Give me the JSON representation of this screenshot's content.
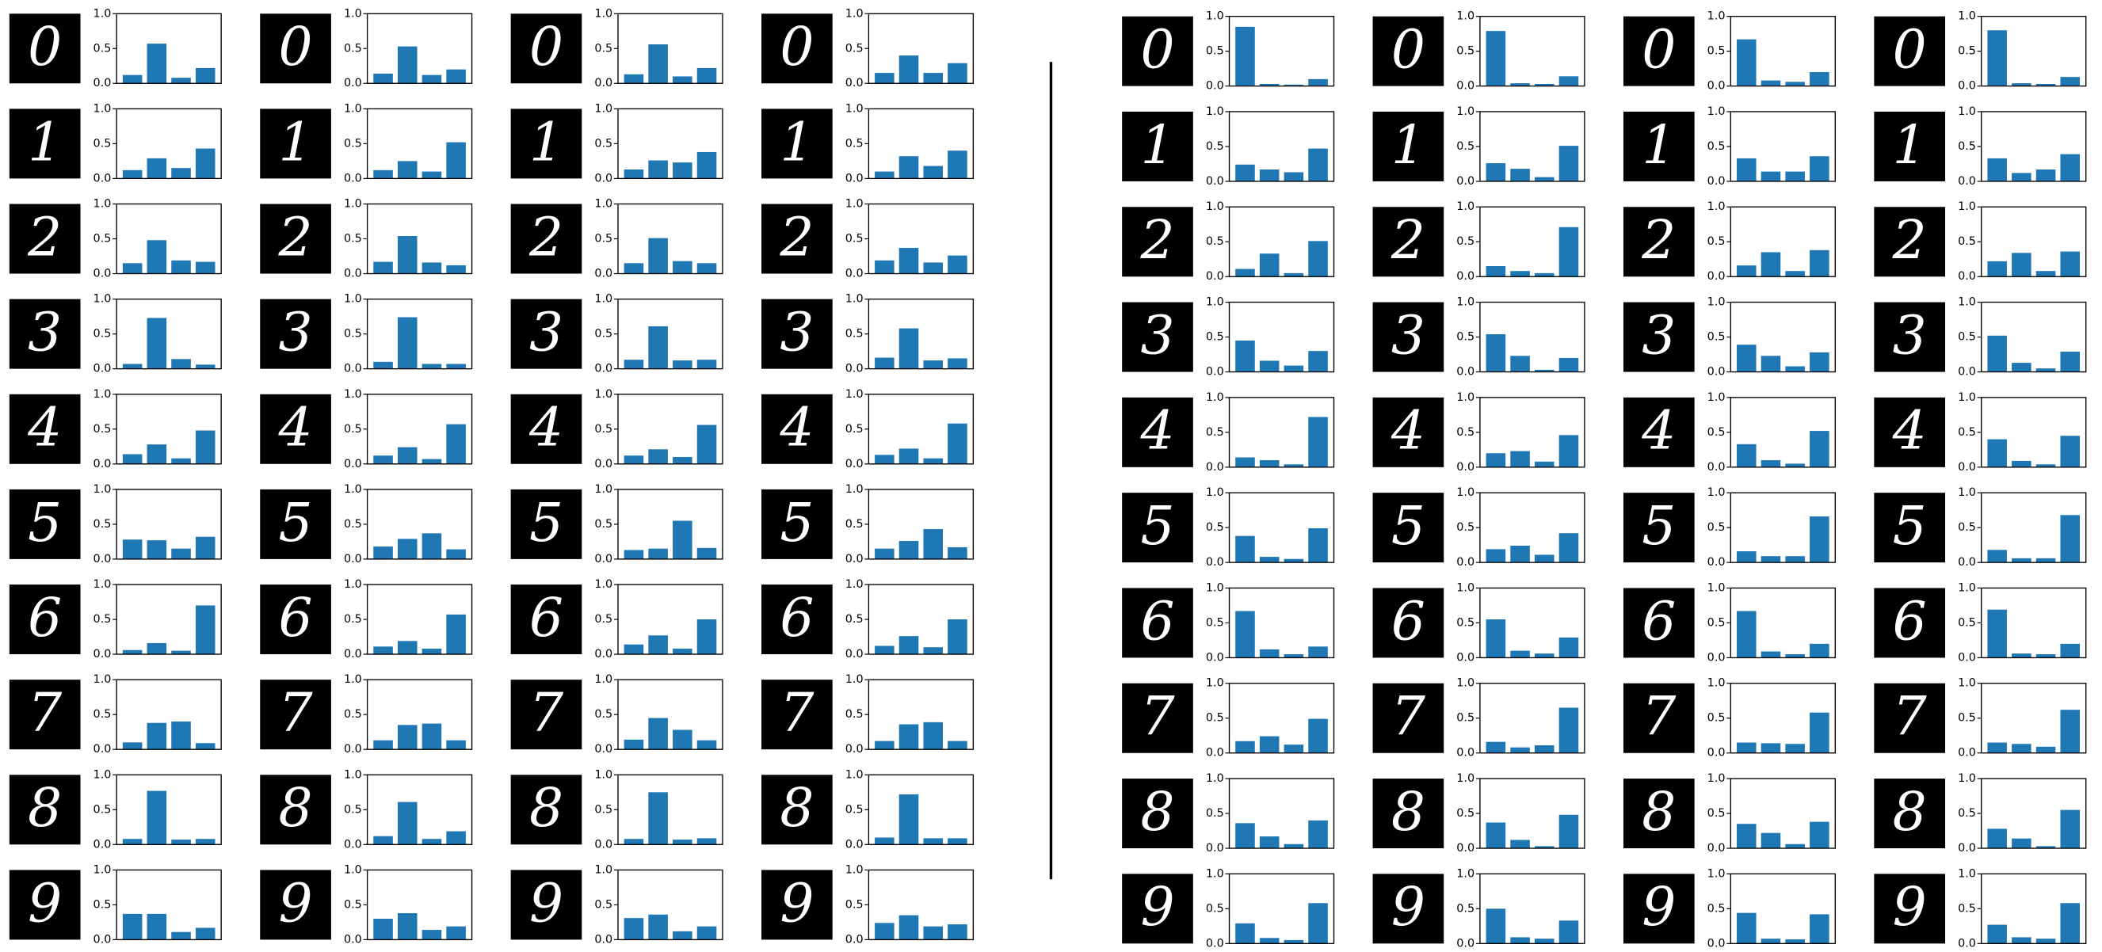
{
  "chart_data": {
    "type": "bar",
    "color": "#1f77b4",
    "ylim": [
      0,
      1
    ],
    "yticks": [
      {
        "value": 0,
        "label": "0.0"
      },
      {
        "value": 0.5,
        "label": "0.5"
      },
      {
        "value": 1,
        "label": "1.0"
      }
    ],
    "panels": [
      {
        "rows": [
          {
            "digit": "0",
            "charts": [
              [
                0.12,
                0.57,
                0.08,
                0.22
              ],
              [
                0.14,
                0.53,
                0.12,
                0.2
              ],
              [
                0.13,
                0.56,
                0.1,
                0.22
              ],
              [
                0.15,
                0.4,
                0.15,
                0.29
              ]
            ]
          },
          {
            "digit": "1",
            "charts": [
              [
                0.12,
                0.29,
                0.15,
                0.43
              ],
              [
                0.12,
                0.25,
                0.1,
                0.52
              ],
              [
                0.13,
                0.26,
                0.23,
                0.38
              ],
              [
                0.1,
                0.32,
                0.18,
                0.4
              ]
            ]
          },
          {
            "digit": "2",
            "charts": [
              [
                0.15,
                0.48,
                0.19,
                0.17
              ],
              [
                0.17,
                0.54,
                0.16,
                0.12
              ],
              [
                0.15,
                0.51,
                0.18,
                0.15
              ],
              [
                0.19,
                0.37,
                0.16,
                0.26
              ]
            ]
          },
          {
            "digit": "3",
            "charts": [
              [
                0.07,
                0.73,
                0.14,
                0.06
              ],
              [
                0.1,
                0.74,
                0.07,
                0.07
              ],
              [
                0.13,
                0.61,
                0.12,
                0.13
              ],
              [
                0.16,
                0.58,
                0.12,
                0.15
              ]
            ]
          },
          {
            "digit": "4",
            "charts": [
              [
                0.14,
                0.28,
                0.08,
                0.48
              ],
              [
                0.12,
                0.24,
                0.07,
                0.57
              ],
              [
                0.12,
                0.21,
                0.1,
                0.56
              ],
              [
                0.13,
                0.22,
                0.08,
                0.58
              ]
            ]
          },
          {
            "digit": "5",
            "charts": [
              [
                0.28,
                0.27,
                0.15,
                0.32
              ],
              [
                0.18,
                0.29,
                0.37,
                0.14
              ],
              [
                0.13,
                0.15,
                0.55,
                0.16
              ],
              [
                0.15,
                0.26,
                0.43,
                0.17
              ]
            ]
          },
          {
            "digit": "6",
            "charts": [
              [
                0.06,
                0.16,
                0.05,
                0.7
              ],
              [
                0.11,
                0.19,
                0.08,
                0.57
              ],
              [
                0.14,
                0.27,
                0.08,
                0.5
              ],
              [
                0.12,
                0.26,
                0.1,
                0.5
              ]
            ]
          },
          {
            "digit": "7",
            "charts": [
              [
                0.1,
                0.38,
                0.4,
                0.09
              ],
              [
                0.13,
                0.35,
                0.37,
                0.13
              ],
              [
                0.14,
                0.45,
                0.28,
                0.13
              ],
              [
                0.12,
                0.36,
                0.39,
                0.12
              ]
            ]
          },
          {
            "digit": "8",
            "charts": [
              [
                0.08,
                0.77,
                0.07,
                0.08
              ],
              [
                0.12,
                0.61,
                0.08,
                0.19
              ],
              [
                0.08,
                0.75,
                0.07,
                0.09
              ],
              [
                0.1,
                0.72,
                0.09,
                0.09
              ]
            ]
          },
          {
            "digit": "9",
            "charts": [
              [
                0.37,
                0.37,
                0.11,
                0.17
              ],
              [
                0.3,
                0.38,
                0.14,
                0.19
              ],
              [
                0.31,
                0.36,
                0.12,
                0.19
              ],
              [
                0.24,
                0.35,
                0.19,
                0.22
              ]
            ]
          }
        ]
      },
      {
        "rows": [
          {
            "digit": "0",
            "charts": [
              [
                0.85,
                0.03,
                0.02,
                0.1
              ],
              [
                0.79,
                0.04,
                0.03,
                0.14
              ],
              [
                0.67,
                0.08,
                0.06,
                0.2
              ],
              [
                0.8,
                0.04,
                0.03,
                0.13
              ]
            ]
          },
          {
            "digit": "1",
            "charts": [
              [
                0.24,
                0.17,
                0.13,
                0.47
              ],
              [
                0.26,
                0.18,
                0.06,
                0.51
              ],
              [
                0.33,
                0.14,
                0.14,
                0.36
              ],
              [
                0.33,
                0.12,
                0.17,
                0.39
              ]
            ]
          },
          {
            "digit": "2",
            "charts": [
              [
                0.11,
                0.33,
                0.05,
                0.51
              ],
              [
                0.15,
                0.08,
                0.05,
                0.71
              ],
              [
                0.16,
                0.35,
                0.08,
                0.38
              ],
              [
                0.22,
                0.34,
                0.08,
                0.36
              ]
            ]
          },
          {
            "digit": "3",
            "charts": [
              [
                0.45,
                0.16,
                0.09,
                0.3
              ],
              [
                0.54,
                0.23,
                0.03,
                0.2
              ],
              [
                0.39,
                0.23,
                0.08,
                0.28
              ],
              [
                0.52,
                0.13,
                0.05,
                0.29
              ]
            ]
          },
          {
            "digit": "4",
            "charts": [
              [
                0.14,
                0.1,
                0.04,
                0.72
              ],
              [
                0.2,
                0.23,
                0.08,
                0.46
              ],
              [
                0.33,
                0.1,
                0.05,
                0.52
              ],
              [
                0.4,
                0.09,
                0.04,
                0.45
              ]
            ]
          },
          {
            "digit": "5",
            "charts": [
              [
                0.38,
                0.08,
                0.05,
                0.49
              ],
              [
                0.19,
                0.24,
                0.11,
                0.42
              ],
              [
                0.16,
                0.09,
                0.09,
                0.66
              ],
              [
                0.18,
                0.06,
                0.06,
                0.68
              ]
            ]
          },
          {
            "digit": "6",
            "charts": [
              [
                0.67,
                0.12,
                0.05,
                0.16
              ],
              [
                0.55,
                0.1,
                0.06,
                0.29
              ],
              [
                0.67,
                0.09,
                0.05,
                0.2
              ],
              [
                0.69,
                0.06,
                0.05,
                0.2
              ]
            ]
          },
          {
            "digit": "7",
            "charts": [
              [
                0.17,
                0.24,
                0.12,
                0.49
              ],
              [
                0.16,
                0.08,
                0.11,
                0.65
              ],
              [
                0.15,
                0.14,
                0.13,
                0.58
              ],
              [
                0.15,
                0.13,
                0.09,
                0.62
              ]
            ]
          },
          {
            "digit": "8",
            "charts": [
              [
                0.36,
                0.17,
                0.06,
                0.4
              ],
              [
                0.37,
                0.12,
                0.03,
                0.48
              ],
              [
                0.35,
                0.22,
                0.06,
                0.38
              ],
              [
                0.28,
                0.14,
                0.03,
                0.55
              ]
            ]
          },
          {
            "digit": "9",
            "charts": [
              [
                0.29,
                0.08,
                0.05,
                0.58
              ],
              [
                0.5,
                0.09,
                0.07,
                0.33
              ],
              [
                0.44,
                0.07,
                0.06,
                0.42
              ],
              [
                0.27,
                0.09,
                0.07,
                0.58
              ]
            ]
          }
        ]
      }
    ]
  }
}
